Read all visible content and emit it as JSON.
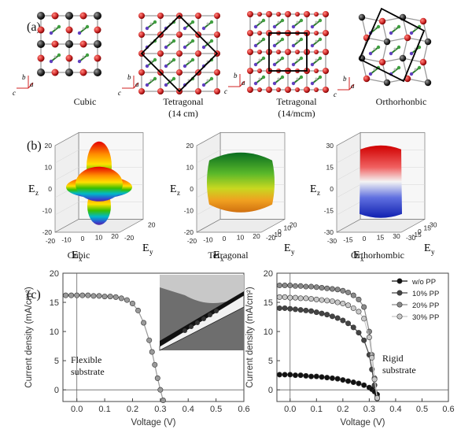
{
  "panel_a": {
    "letter": "(a)",
    "structures": [
      {
        "name": "Cubic",
        "sub": ""
      },
      {
        "name": "Tetragonal",
        "sub": "(14 cm)"
      },
      {
        "name": "Tetragonal",
        "sub": "(14/mcm)"
      },
      {
        "name": "Orthorhonbic",
        "sub": ""
      }
    ],
    "axis_labels": {
      "a": "a",
      "b": "b",
      "c": "c"
    }
  },
  "panel_b": {
    "letter": "(b)",
    "plots": [
      {
        "name": "Cubic",
        "z_ticks": [
          "20",
          "10",
          "0",
          "-10",
          "-20"
        ],
        "x_ticks": [
          "-20",
          "-10",
          "0",
          "10",
          "20"
        ],
        "y_ticks": [
          "20",
          "-20"
        ],
        "xlabel": "E",
        "xsub": "x",
        "ylabel": "E",
        "ysub": "y",
        "zlabel": "E",
        "zsub": "z"
      },
      {
        "name": "Tetragonal",
        "z_ticks": [
          "20",
          "10",
          "0",
          "-10",
          "-20"
        ],
        "x_ticks": [
          "-20",
          "-10",
          "0",
          "10",
          "20"
        ],
        "y_ticks": [
          "20",
          "10",
          "0",
          "-10",
          "-20"
        ],
        "xlabel": "E",
        "xsub": "x",
        "ylabel": "E",
        "ysub": "y",
        "zlabel": "E",
        "zsub": "z"
      },
      {
        "name": "Orthorhombic",
        "z_ticks": [
          "30",
          "15",
          "0",
          "-15",
          "-30"
        ],
        "x_ticks": [
          "-30",
          "-15",
          "0",
          "15",
          "30"
        ],
        "y_ticks": [
          "30",
          "15",
          "0",
          "-15",
          "-30"
        ],
        "xlabel": "E",
        "xsub": "x",
        "ylabel": "E",
        "ysub": "y",
        "zlabel": "E",
        "zsub": "z"
      }
    ]
  },
  "panel_c": {
    "letter": "(c)",
    "left_label": "Flexible\nsubstrate",
    "right_label": "Rigid\nsubstrate"
  },
  "chart_data": [
    {
      "type": "line",
      "title": "",
      "xlabel": "Voltage (V)",
      "ylabel": "Current density (mA/cm²)",
      "xlim": [
        -0.05,
        0.6
      ],
      "ylim": [
        -2,
        20
      ],
      "x_ticks": [
        "0.0",
        "0.1",
        "0.2",
        "0.3",
        "0.4",
        "0.5",
        "0.6"
      ],
      "y_ticks": [
        "0",
        "5",
        "10",
        "15",
        "20"
      ],
      "annotation": "Flexible substrate",
      "series": [
        {
          "color": "#9a9a9a",
          "x": [
            -0.04,
            -0.02,
            0.0,
            0.02,
            0.04,
            0.06,
            0.08,
            0.1,
            0.12,
            0.14,
            0.16,
            0.18,
            0.2,
            0.22,
            0.24,
            0.26,
            0.27,
            0.28,
            0.29,
            0.3,
            0.31
          ],
          "y": [
            16.2,
            16.2,
            16.2,
            16.2,
            16.2,
            16.1,
            16.1,
            16.0,
            16.0,
            15.9,
            15.7,
            15.4,
            14.8,
            13.6,
            11.5,
            8.5,
            6.5,
            4.3,
            2.0,
            0.0,
            -1.8
          ]
        }
      ]
    },
    {
      "type": "line",
      "title": "",
      "xlabel": "Voltage (V)",
      "ylabel": "Current density (mA/cm²)",
      "xlim": [
        -0.05,
        0.6
      ],
      "ylim": [
        -2,
        20
      ],
      "x_ticks": [
        "0.0",
        "0.1",
        "0.2",
        "0.3",
        "0.4",
        "0.5",
        "0.6"
      ],
      "y_ticks": [
        "0",
        "5",
        "10",
        "15",
        "20"
      ],
      "annotation": "Rigid substrate",
      "legend_position": "top-right",
      "series": [
        {
          "name": "w/o PP",
          "color": "#111111",
          "x": [
            -0.04,
            -0.02,
            0.0,
            0.02,
            0.04,
            0.06,
            0.08,
            0.1,
            0.12,
            0.14,
            0.16,
            0.18,
            0.2,
            0.22,
            0.24,
            0.26,
            0.28,
            0.3,
            0.31,
            0.32,
            0.33
          ],
          "y": [
            2.6,
            2.6,
            2.6,
            2.5,
            2.5,
            2.4,
            2.3,
            2.3,
            2.2,
            2.1,
            2.0,
            1.9,
            1.7,
            1.5,
            1.3,
            1.1,
            0.8,
            0.4,
            0.1,
            -0.3,
            -0.8
          ]
        },
        {
          "name": "10% PP",
          "color": "#444444",
          "x": [
            -0.04,
            -0.02,
            0.0,
            0.02,
            0.04,
            0.06,
            0.08,
            0.1,
            0.12,
            0.14,
            0.16,
            0.18,
            0.2,
            0.22,
            0.24,
            0.26,
            0.28,
            0.3,
            0.31,
            0.32,
            0.33
          ],
          "y": [
            14.0,
            14.0,
            13.9,
            13.8,
            13.7,
            13.6,
            13.5,
            13.3,
            13.1,
            12.9,
            12.6,
            12.3,
            11.9,
            11.4,
            10.7,
            9.8,
            8.5,
            6.0,
            3.5,
            0.8,
            -1.3
          ]
        },
        {
          "name": "20% PP",
          "color": "#8a8a8a",
          "x": [
            -0.04,
            -0.02,
            0.0,
            0.02,
            0.04,
            0.06,
            0.08,
            0.1,
            0.12,
            0.14,
            0.16,
            0.18,
            0.2,
            0.22,
            0.24,
            0.26,
            0.28,
            0.3,
            0.31,
            0.32,
            0.33
          ],
          "y": [
            17.9,
            17.9,
            17.9,
            17.8,
            17.8,
            17.7,
            17.7,
            17.6,
            17.5,
            17.4,
            17.3,
            17.2,
            17.0,
            16.7,
            16.2,
            15.5,
            14.2,
            10.0,
            6.0,
            2.0,
            -1.5
          ]
        },
        {
          "name": "30% PP",
          "color": "#c8c8c8",
          "x": [
            -0.04,
            -0.02,
            0.0,
            0.02,
            0.04,
            0.06,
            0.08,
            0.1,
            0.12,
            0.14,
            0.16,
            0.18,
            0.2,
            0.22,
            0.24,
            0.26,
            0.28,
            0.3,
            0.31,
            0.32,
            0.33
          ],
          "y": [
            15.9,
            15.9,
            15.8,
            15.8,
            15.7,
            15.7,
            15.6,
            15.5,
            15.4,
            15.3,
            15.2,
            15.0,
            14.8,
            14.5,
            14.0,
            13.4,
            12.2,
            9.0,
            5.5,
            1.8,
            -1.4
          ]
        }
      ]
    }
  ]
}
